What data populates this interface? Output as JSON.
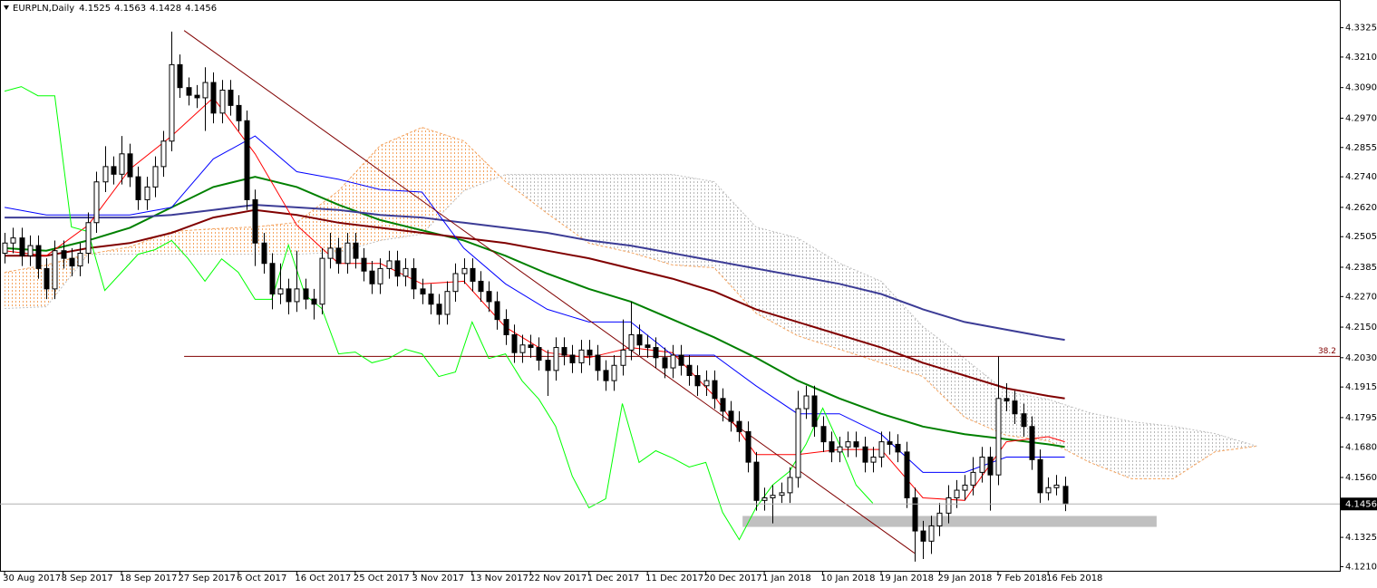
{
  "chart_data": {
    "type": "candlestick",
    "title": "EURPLN,Daily",
    "xlim": [
      -0.5,
      160
    ],
    "ylim": [
      4.1192,
      4.3432
    ],
    "xticks": [
      {
        "value": 0,
        "label": "30 Aug 2017"
      },
      {
        "value": 7,
        "label": "8 Sep 2017"
      },
      {
        "value": 14,
        "label": "18 Sep 2017"
      },
      {
        "value": 21,
        "label": "27 Sep 2017"
      },
      {
        "value": 28,
        "label": "6 Oct 2017"
      },
      {
        "value": 35,
        "label": "16 Oct 2017"
      },
      {
        "value": 42,
        "label": "25 Oct 2017"
      },
      {
        "value": 49,
        "label": "3 Nov 2017"
      },
      {
        "value": 56,
        "label": "13 Nov 2017"
      },
      {
        "value": 63,
        "label": "22 Nov 2017"
      },
      {
        "value": 70,
        "label": "1 Dec 2017"
      },
      {
        "value": 77,
        "label": "11 Dec 2017"
      },
      {
        "value": 84,
        "label": "20 Dec 2017"
      },
      {
        "value": 91,
        "label": "1 Jan 2018"
      },
      {
        "value": 98,
        "label": "10 Jan 2018"
      },
      {
        "value": 105,
        "label": "19 Jan 2018"
      },
      {
        "value": 112,
        "label": "29 Jan 2018"
      },
      {
        "value": 119,
        "label": "7 Feb 2018"
      },
      {
        "value": 125,
        "label": "16 Feb 2018"
      }
    ],
    "yticks": [
      4.3325,
      {
        "value": 4.321,
        "label": "4.3210"
      },
      {
        "value": 4.309,
        "label": "4.3090"
      },
      {
        "value": 4.297,
        "label": "4.2970"
      },
      4.2855,
      {
        "value": 4.274,
        "label": "4.2740"
      },
      {
        "value": 4.262,
        "label": "4.2620"
      },
      4.2505,
      4.2385,
      {
        "value": 4.227,
        "label": "4.2270"
      },
      {
        "value": 4.215,
        "label": "4.2150"
      },
      {
        "value": 4.203,
        "label": "4.2030"
      },
      4.1915,
      4.1795,
      {
        "value": 4.168,
        "label": "4.1680"
      },
      {
        "value": 4.156,
        "label": "4.1560"
      },
      4.1325,
      {
        "value": 4.121,
        "label": "4.1210"
      }
    ],
    "candles": {
      "open": [
        4.244,
        4.248,
        4.25,
        4.243,
        4.247,
        4.238,
        4.23,
        4.245,
        4.242,
        4.239,
        4.244,
        4.256,
        4.272,
        4.278,
        4.275,
        4.283,
        4.274,
        4.265,
        4.27,
        4.278,
        4.288,
        4.318,
        4.309,
        4.306,
        4.305,
        4.311,
        4.299,
        4.308,
        4.302,
        4.296,
        4.265,
        4.248,
        4.24,
        4.228,
        4.23,
        4.225,
        4.23,
        4.226,
        4.224,
        4.242,
        4.246,
        4.24,
        4.248,
        4.242,
        4.237,
        4.232,
        4.238,
        4.241,
        4.235,
        4.238,
        4.23,
        4.228,
        4.224,
        4.22,
        4.229,
        4.236,
        4.238,
        4.233,
        4.229,
        4.225,
        4.218,
        4.212,
        4.205,
        4.208,
        4.207,
        4.202,
        4.198,
        4.207,
        4.204,
        4.201,
        4.206,
        4.204,
        4.198,
        4.194,
        4.2,
        4.206,
        4.212,
        4.208,
        4.207,
        4.203,
        4.199,
        4.204,
        4.2,
        4.196,
        4.192,
        4.194,
        4.187,
        4.182,
        4.178,
        4.174,
        4.162,
        4.147,
        4.148,
        4.149,
        4.15,
        4.156,
        4.183,
        4.188,
        4.176,
        4.17,
        4.166,
        4.168,
        4.17,
        4.168,
        4.162,
        4.164,
        4.17,
        4.169,
        4.166,
        4.148,
        4.135,
        4.131,
        4.137,
        4.142,
        4.148,
        4.151,
        4.153,
        4.158,
        4.164,
        4.157,
        4.187,
        4.186,
        4.181,
        4.176,
        4.163,
        4.15,
        4.152,
        4.1525
      ],
      "high": [
        4.252,
        4.254,
        4.254,
        4.251,
        4.251,
        4.242,
        4.249,
        4.249,
        4.246,
        4.248,
        4.26,
        4.276,
        4.286,
        4.282,
        4.29,
        4.287,
        4.278,
        4.274,
        4.282,
        4.292,
        4.331,
        4.322,
        4.313,
        4.31,
        4.317,
        4.315,
        4.312,
        4.312,
        4.306,
        4.3,
        4.269,
        4.252,
        4.244,
        4.24,
        4.234,
        4.245,
        4.234,
        4.23,
        4.246,
        4.252,
        4.25,
        4.252,
        4.252,
        4.246,
        4.241,
        4.242,
        4.245,
        4.245,
        4.242,
        4.242,
        4.234,
        4.232,
        4.228,
        4.233,
        4.24,
        4.242,
        4.242,
        4.237,
        4.233,
        4.229,
        4.222,
        4.216,
        4.212,
        4.212,
        4.211,
        4.206,
        4.211,
        4.211,
        4.208,
        4.21,
        4.21,
        4.208,
        4.202,
        4.204,
        4.218,
        4.225,
        4.216,
        4.212,
        4.211,
        4.207,
        4.208,
        4.208,
        4.204,
        4.2,
        4.198,
        4.198,
        4.191,
        4.186,
        4.182,
        4.178,
        4.166,
        4.152,
        4.153,
        4.154,
        4.16,
        4.19,
        4.192,
        4.192,
        4.18,
        4.174,
        4.172,
        4.174,
        4.174,
        4.172,
        4.168,
        4.174,
        4.174,
        4.173,
        4.17,
        4.152,
        4.139,
        4.141,
        4.146,
        4.153,
        4.155,
        4.157,
        4.164,
        4.168,
        4.168,
        4.2035,
        4.193,
        4.19,
        4.185,
        4.18,
        4.167,
        4.156,
        4.157,
        4.1563
      ],
      "low": [
        4.24,
        4.244,
        4.239,
        4.239,
        4.234,
        4.226,
        4.226,
        4.238,
        4.235,
        4.235,
        4.24,
        4.252,
        4.268,
        4.271,
        4.271,
        4.27,
        4.261,
        4.261,
        4.266,
        4.274,
        4.284,
        4.305,
        4.302,
        4.301,
        4.292,
        4.295,
        4.295,
        4.298,
        4.292,
        4.261,
        4.239,
        4.236,
        4.222,
        4.224,
        4.22,
        4.221,
        4.222,
        4.218,
        4.22,
        4.238,
        4.236,
        4.236,
        4.238,
        4.233,
        4.228,
        4.228,
        4.234,
        4.231,
        4.231,
        4.226,
        4.224,
        4.22,
        4.216,
        4.216,
        4.225,
        4.232,
        4.229,
        4.225,
        4.221,
        4.214,
        4.208,
        4.201,
        4.201,
        4.203,
        4.198,
        4.188,
        4.194,
        4.2,
        4.197,
        4.197,
        4.2,
        4.194,
        4.19,
        4.19,
        4.196,
        4.202,
        4.204,
        4.203,
        4.199,
        4.195,
        4.195,
        4.196,
        4.192,
        4.188,
        4.188,
        4.183,
        4.178,
        4.174,
        4.17,
        4.158,
        4.143,
        4.143,
        4.138,
        4.146,
        4.146,
        4.152,
        4.179,
        4.172,
        4.166,
        4.162,
        4.162,
        4.164,
        4.164,
        4.158,
        4.158,
        4.16,
        4.165,
        4.162,
        4.144,
        4.123,
        4.124,
        4.126,
        4.133,
        4.138,
        4.144,
        4.147,
        4.149,
        4.154,
        4.143,
        4.153,
        4.182,
        4.177,
        4.172,
        4.159,
        4.146,
        4.147,
        4.149,
        4.1428
      ],
      "close": [
        4.248,
        4.25,
        4.243,
        4.247,
        4.238,
        4.23,
        4.245,
        4.242,
        4.239,
        4.244,
        4.256,
        4.272,
        4.278,
        4.275,
        4.283,
        4.274,
        4.265,
        4.27,
        4.278,
        4.288,
        4.318,
        4.309,
        4.306,
        4.305,
        4.311,
        4.299,
        4.308,
        4.302,
        4.296,
        4.265,
        4.248,
        4.24,
        4.228,
        4.23,
        4.225,
        4.23,
        4.226,
        4.224,
        4.242,
        4.246,
        4.24,
        4.248,
        4.242,
        4.237,
        4.232,
        4.238,
        4.241,
        4.235,
        4.238,
        4.23,
        4.228,
        4.224,
        4.22,
        4.229,
        4.236,
        4.238,
        4.233,
        4.229,
        4.225,
        4.218,
        4.212,
        4.205,
        4.208,
        4.207,
        4.202,
        4.198,
        4.207,
        4.204,
        4.201,
        4.206,
        4.204,
        4.198,
        4.194,
        4.2,
        4.206,
        4.212,
        4.208,
        4.207,
        4.203,
        4.199,
        4.204,
        4.2,
        4.196,
        4.192,
        4.194,
        4.187,
        4.182,
        4.178,
        4.174,
        4.162,
        4.147,
        4.148,
        4.149,
        4.15,
        4.156,
        4.183,
        4.188,
        4.176,
        4.17,
        4.166,
        4.168,
        4.17,
        4.168,
        4.162,
        4.164,
        4.17,
        4.169,
        4.166,
        4.148,
        4.135,
        4.131,
        4.137,
        4.142,
        4.148,
        4.151,
        4.153,
        4.158,
        4.164,
        4.157,
        4.187,
        4.186,
        4.181,
        4.176,
        4.163,
        4.15,
        4.152,
        4.153,
        4.1456
      ],
      "up_color": "#ffffff",
      "down_color": "#000000"
    },
    "cloud": {
      "x": [
        0,
        5,
        10,
        15,
        20,
        25,
        30,
        35,
        40,
        45,
        50,
        55,
        60,
        65,
        70,
        75,
        80,
        85,
        90,
        95,
        100,
        105,
        110,
        115,
        120,
        125,
        130,
        135,
        140,
        145,
        150
      ],
      "span_a": [
        4.2365,
        4.2394,
        4.2436,
        4.2465,
        4.2525,
        4.2536,
        4.2543,
        4.2561,
        4.2685,
        4.2863,
        4.2934,
        4.2881,
        4.2721,
        4.2596,
        4.2479,
        4.2443,
        4.2394,
        4.2383,
        4.2205,
        4.2116,
        4.2063,
        4.201,
        4.1956,
        4.1796,
        4.1725,
        4.1704,
        4.1619,
        4.1555,
        4.1555,
        4.1661,
        4.1683
      ],
      "span_b": [
        4.2223,
        4.223,
        4.2436,
        4.2436,
        4.2436,
        4.2436,
        4.2436,
        4.2436,
        4.2443,
        4.249,
        4.2515,
        4.2685,
        4.2749,
        4.2749,
        4.2749,
        4.2749,
        4.2749,
        4.2721,
        4.2543,
        4.25,
        4.2401,
        4.233,
        4.2152,
        4.2027,
        4.1896,
        4.1867,
        4.1814,
        4.1779,
        4.1761,
        4.1732,
        4.1683
      ],
      "color_a": "#f4a460",
      "color_b": "#c0c0c0"
    },
    "series": [
      {
        "color": "#008000",
        "width": 2,
        "x": [
          0,
          5,
          10,
          15,
          20,
          25,
          30,
          35,
          40,
          45,
          50,
          55,
          60,
          65,
          70,
          75,
          80,
          85,
          90,
          95,
          100,
          105,
          110,
          115,
          120,
          125,
          127
        ],
        "values": [
          4.246,
          4.245,
          4.249,
          4.254,
          4.262,
          4.27,
          4.274,
          4.27,
          4.263,
          4.257,
          4.253,
          4.249,
          4.243,
          4.236,
          4.23,
          4.225,
          4.218,
          4.211,
          4.203,
          4.194,
          4.187,
          4.181,
          4.176,
          4.173,
          4.171,
          4.169,
          4.168
        ]
      },
      {
        "color": "#800000",
        "width": 2,
        "x": [
          0,
          5,
          10,
          15,
          20,
          25,
          30,
          35,
          40,
          45,
          50,
          55,
          60,
          65,
          70,
          75,
          80,
          85,
          90,
          95,
          100,
          105,
          110,
          115,
          120,
          125,
          127
        ],
        "values": [
          4.243,
          4.243,
          4.246,
          4.248,
          4.252,
          4.258,
          4.261,
          4.259,
          4.256,
          4.254,
          4.252,
          4.25,
          4.248,
          4.245,
          4.242,
          4.238,
          4.234,
          4.229,
          4.222,
          4.217,
          4.212,
          4.207,
          4.201,
          4.196,
          4.191,
          4.188,
          4.187
        ]
      },
      {
        "color": "#3c3c96",
        "width": 2,
        "x": [
          0,
          5,
          10,
          15,
          20,
          25,
          30,
          35,
          40,
          45,
          50,
          55,
          60,
          65,
          70,
          75,
          80,
          85,
          90,
          95,
          100,
          105,
          110,
          115,
          120,
          125,
          127
        ],
        "values": [
          4.258,
          4.258,
          4.258,
          4.258,
          4.259,
          4.261,
          4.263,
          4.262,
          4.261,
          4.259,
          4.258,
          4.256,
          4.254,
          4.252,
          4.249,
          4.247,
          4.244,
          4.241,
          4.238,
          4.235,
          4.232,
          4.228,
          4.222,
          4.217,
          4.214,
          4.211,
          4.21
        ]
      },
      {
        "color": "#ff0000",
        "width": 1,
        "x": [
          0,
          5,
          10,
          15,
          20,
          25,
          30,
          35,
          40,
          45,
          50,
          55,
          60,
          65,
          70,
          75,
          80,
          85,
          90,
          95,
          100,
          105,
          110,
          115,
          120,
          125,
          127
        ],
        "values": [
          4.245,
          4.243,
          4.255,
          4.277,
          4.29,
          4.305,
          4.283,
          4.255,
          4.24,
          4.24,
          4.232,
          4.233,
          4.215,
          4.205,
          4.203,
          4.207,
          4.205,
          4.188,
          4.165,
          4.165,
          4.167,
          4.167,
          4.148,
          4.147,
          4.17,
          4.172,
          4.17
        ]
      },
      {
        "color": "#0000ff",
        "width": 1,
        "x": [
          0,
          5,
          10,
          15,
          20,
          25,
          30,
          35,
          40,
          45,
          50,
          55,
          60,
          65,
          70,
          75,
          80,
          85,
          90,
          95,
          100,
          105,
          110,
          115,
          120,
          125,
          127
        ],
        "values": [
          4.262,
          4.259,
          4.259,
          4.259,
          4.262,
          4.281,
          4.29,
          4.276,
          4.273,
          4.269,
          4.268,
          4.246,
          4.232,
          4.222,
          4.217,
          4.217,
          4.204,
          4.204,
          4.192,
          4.181,
          4.181,
          4.173,
          4.158,
          4.158,
          4.164,
          4.164,
          4.164
        ]
      },
      {
        "color": "#00ff00",
        "width": 1,
        "x": [
          0,
          2,
          4,
          6,
          8,
          10,
          12,
          14,
          16,
          18,
          20,
          22,
          24,
          26,
          28,
          30,
          32,
          34,
          36,
          38,
          40,
          42,
          44,
          46,
          48,
          50,
          52,
          54,
          56,
          58,
          60,
          62,
          64,
          66,
          68,
          70,
          72,
          74,
          76,
          78,
          80,
          82,
          84,
          86,
          88,
          90,
          92,
          94,
          96,
          98,
          100,
          102,
          104
        ],
        "values": [
          4.3076,
          4.3094,
          4.3058,
          4.3058,
          4.2543,
          4.2525,
          4.2294,
          4.2365,
          4.2436,
          4.2454,
          4.249,
          4.2418,
          4.233,
          4.2418,
          4.2365,
          4.2259,
          4.2259,
          4.2472,
          4.2276,
          4.2223,
          4.2045,
          4.2052,
          4.201,
          4.2027,
          4.2063,
          4.2045,
          4.1956,
          4.1974,
          4.217,
          4.2027,
          4.2045,
          4.1939,
          4.1867,
          4.1761,
          4.1565,
          4.1441,
          4.1476,
          4.185,
          4.1619,
          4.1665,
          4.1636,
          4.1601,
          4.1619,
          4.1423,
          4.1316,
          4.1441,
          4.153,
          4.1583,
          4.169,
          4.1832,
          4.169,
          4.153,
          4.1459
        ]
      }
    ],
    "trendline": {
      "x": [
        21.5,
        109
      ],
      "y": [
        4.3314,
        4.1263
      ],
      "color": "#800000"
    },
    "level": {
      "label": "38.2",
      "value": 4.2035,
      "x_start": 21.5,
      "color": "#800000"
    },
    "zone": {
      "x": [
        88.4,
        138
      ],
      "y": [
        4.1366,
        4.1409
      ],
      "color": "#c0c0c0"
    }
  }
}
